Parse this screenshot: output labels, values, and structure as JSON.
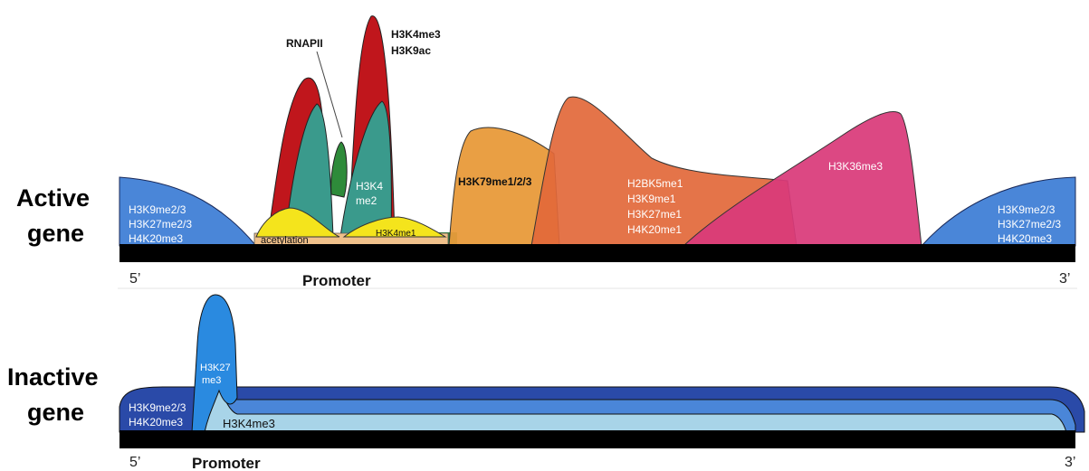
{
  "active": {
    "label_line1": "Active",
    "label_line2": "gene",
    "five_prime": "5’",
    "three_prime": "3’",
    "promoter": "Promoter",
    "rnapii": "RNAPII",
    "h3k4me3": "H3K4me3",
    "h3k9ac": "H3K9ac",
    "h3k4me2_line1": "H3K4",
    "h3k4me2_line2": "me2",
    "acetylation": "acetylation",
    "h3k4me1": "H3K4me1",
    "h3k79": "H3K79me1/2/3",
    "h3k36me3": "H3K36me3",
    "left_marks": [
      "H3K9me2/3",
      "H3K27me2/3",
      "H4K20me3"
    ],
    "right_marks": [
      "H3K9me2/3",
      "H3K27me2/3",
      "H4K20me3"
    ],
    "mid_marks": [
      "H2BK5me1",
      "H3K9me1",
      "H3K27me1",
      "H4K20me1"
    ]
  },
  "inactive": {
    "label_line1": "Inactive",
    "label_line2": "gene",
    "five_prime": "5’",
    "three_prime": "3’",
    "promoter": "Promoter",
    "h3k27_line1": "H3K27",
    "h3k27_line2": "me3",
    "left_marks": [
      "H3K9me2/3",
      "H4K20me3"
    ],
    "h3k4me3": "H3K4me3"
  },
  "colors": {
    "heterochromatin_blue": "#4a86d8",
    "red": "#c0161c",
    "teal": "#3a9a8c",
    "green": "#2e8b3a",
    "yellow": "#f4e41c",
    "peach": "#f0c08a",
    "orange": "#e89a3a",
    "orange_red": "#e2683a",
    "magenta": "#d93a7a",
    "navy": "#2a4aa8",
    "light_blue": "#a8d4e8",
    "bright_blue": "#2a8ae0",
    "dna": "#000000"
  }
}
